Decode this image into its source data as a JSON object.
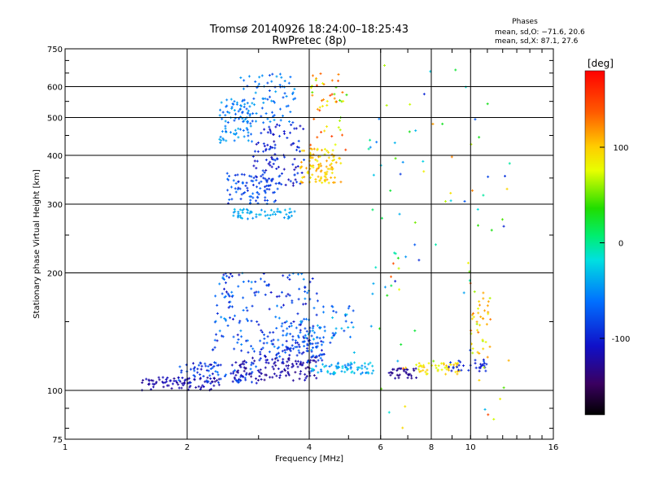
{
  "chart_data": {
    "type": "scatter",
    "title": "Tromsø 20140926 18:24:00–18:25:43",
    "subtitle": "RwPretec (8p)",
    "xlabel": "Frequency [MHz]",
    "ylabel": "Stationary phase Virtual Height [km]",
    "x_scale": "log",
    "y_scale": "log",
    "xlim": [
      1,
      16
    ],
    "ylim": [
      75,
      750
    ],
    "x_ticks": [
      1,
      2,
      4,
      6,
      8,
      10,
      16
    ],
    "y_ticks": [
      75,
      100,
      200,
      300,
      400,
      500,
      600,
      750
    ],
    "grid": true,
    "phase_box": {
      "heading": "Phases",
      "line1": "mean, sd,O: −71.6, 20.6",
      "line2": "mean, sd,X:  87.1, 27.6"
    },
    "colorbar": {
      "label": "[deg]",
      "range": [
        -180,
        180
      ],
      "ticks": [
        100,
        0,
        -100
      ]
    },
    "clusters": [
      {
        "fx": [
          1.5,
          2.4
        ],
        "fy": [
          100,
          108
        ],
        "ph": [
          -130,
          -110
        ],
        "n": 80
      },
      {
        "fx": [
          1.9,
          3.0
        ],
        "fy": [
          104,
          118
        ],
        "ph": [
          -120,
          -60
        ],
        "n": 90
      },
      {
        "fx": [
          2.6,
          4.2
        ],
        "fy": [
          106,
          122
        ],
        "ph": [
          -135,
          -110
        ],
        "n": 110
      },
      {
        "fx": [
          3.0,
          4.4
        ],
        "fy": [
          118,
          138
        ],
        "ph": [
          -110,
          -60
        ],
        "n": 80
      },
      {
        "fx": [
          4.0,
          5.8
        ],
        "fy": [
          110,
          118
        ],
        "ph": [
          -60,
          -20
        ],
        "n": 70
      },
      {
        "fx": [
          2.3,
          4.2
        ],
        "fy": [
          125,
          200
        ],
        "ph": [
          -115,
          -45
        ],
        "n": 190
      },
      {
        "fx": [
          3.7,
          5.4
        ],
        "fy": [
          125,
          165
        ],
        "ph": [
          -90,
          -30
        ],
        "n": 60
      },
      {
        "fx": [
          2.5,
          3.4
        ],
        "fy": [
          300,
          360
        ],
        "ph": [
          -100,
          -60
        ],
        "n": 90
      },
      {
        "fx": [
          2.6,
          3.7
        ],
        "fy": [
          275,
          292
        ],
        "ph": [
          -50,
          -30
        ],
        "n": 55
      },
      {
        "fx": [
          2.4,
          2.9
        ],
        "fy": [
          430,
          560
        ],
        "ph": [
          -75,
          -35
        ],
        "n": 80
      },
      {
        "fx": [
          2.7,
          3.7
        ],
        "fy": [
          480,
          650
        ],
        "ph": [
          -80,
          -40
        ],
        "n": 80
      },
      {
        "fx": [
          2.9,
          3.9
        ],
        "fy": [
          330,
          480
        ],
        "ph": [
          -120,
          -80
        ],
        "n": 100
      },
      {
        "fx": [
          3.8,
          4.8
        ],
        "fy": [
          340,
          420
        ],
        "ph": [
          80,
          120
        ],
        "n": 100
      },
      {
        "fx": [
          4.0,
          5.0
        ],
        "fy": [
          400,
          650
        ],
        "ph": [
          40,
          150
        ],
        "n": 50
      },
      {
        "fx": [
          6.2,
          7.4
        ],
        "fy": [
          107,
          114
        ],
        "ph": [
          -135,
          -120
        ],
        "n": 35
      },
      {
        "fx": [
          7.4,
          9.5
        ],
        "fy": [
          110,
          118
        ],
        "ph": [
          70,
          110
        ],
        "n": 45
      },
      {
        "fx": [
          8.8,
          11.0
        ],
        "fy": [
          112,
          120
        ],
        "ph": [
          -110,
          -90
        ],
        "n": 30
      },
      {
        "fx": [
          10.0,
          11.2
        ],
        "fy": [
          120,
          180
        ],
        "ph": [
          60,
          130
        ],
        "n": 40
      },
      {
        "fx": [
          6.0,
          12.5
        ],
        "fy": [
          80,
          700
        ],
        "ph": [
          -100,
          150
        ],
        "n": 70
      },
      {
        "fx": [
          5.5,
          7.0
        ],
        "fy": [
          130,
          500
        ],
        "ph": [
          -60,
          40
        ],
        "n": 25
      }
    ]
  }
}
